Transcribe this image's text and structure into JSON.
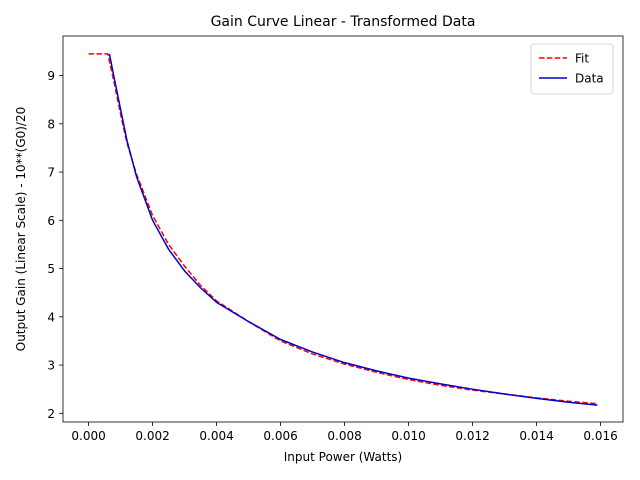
{
  "chart_data": {
    "type": "line",
    "title": "Gain Curve Linear - Transformed Data",
    "xlabel": "Input Power (Watts)",
    "ylabel": "Output Gain (Linear Scale) - 10**(G0)/20",
    "xlim": [
      -0.0008,
      0.0167
    ],
    "ylim": [
      1.82,
      9.82
    ],
    "xticks": [
      0.0,
      0.002,
      0.004,
      0.006,
      0.008,
      0.01,
      0.012,
      0.014,
      0.016
    ],
    "xtick_labels": [
      "0.000",
      "0.002",
      "0.004",
      "0.006",
      "0.008",
      "0.010",
      "0.012",
      "0.014",
      "0.016"
    ],
    "yticks": [
      2,
      3,
      4,
      5,
      6,
      7,
      8,
      9
    ],
    "ytick_labels": [
      "2",
      "3",
      "4",
      "5",
      "6",
      "7",
      "8",
      "9"
    ],
    "grid": false,
    "legend_position": "top-right",
    "series": [
      {
        "name": "Fit",
        "color": "#ff0000",
        "dash": "dashed",
        "x": [
          0.0,
          0.0006,
          0.0008,
          0.001,
          0.0012,
          0.0015,
          0.002,
          0.0025,
          0.003,
          0.0035,
          0.004,
          0.005,
          0.006,
          0.007,
          0.008,
          0.009,
          0.01,
          0.011,
          0.012,
          0.013,
          0.014,
          0.015,
          0.0159
        ],
        "y": [
          9.45,
          9.45,
          8.85,
          8.2,
          7.6,
          6.95,
          6.1,
          5.5,
          5.05,
          4.65,
          4.33,
          3.9,
          3.5,
          3.23,
          3.02,
          2.85,
          2.7,
          2.58,
          2.48,
          2.4,
          2.32,
          2.25,
          2.2
        ]
      },
      {
        "name": "Data",
        "color": "#0000cc",
        "dash": "solid",
        "x": [
          0.00065,
          0.0008,
          0.001,
          0.0012,
          0.0015,
          0.002,
          0.0025,
          0.003,
          0.0035,
          0.004,
          0.005,
          0.006,
          0.007,
          0.008,
          0.009,
          0.01,
          0.011,
          0.012,
          0.013,
          0.014,
          0.015,
          0.0159
        ],
        "y": [
          9.45,
          8.95,
          8.3,
          7.65,
          6.9,
          6.0,
          5.4,
          4.95,
          4.6,
          4.3,
          3.9,
          3.53,
          3.27,
          3.05,
          2.88,
          2.73,
          2.61,
          2.5,
          2.4,
          2.31,
          2.23,
          2.17
        ]
      }
    ]
  }
}
